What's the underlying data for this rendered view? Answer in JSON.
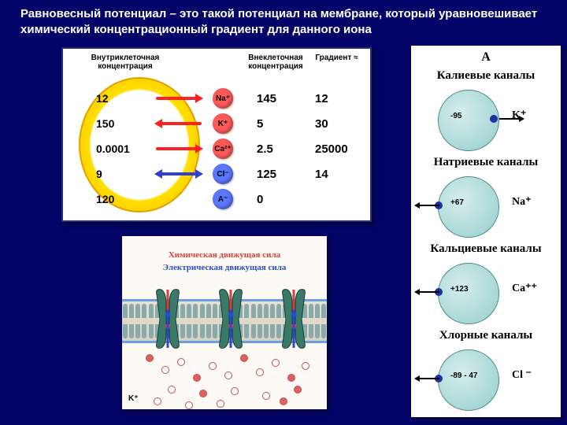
{
  "title": "Равновесный потенциал – это такой потенциал на мембране, который уравновешивает химический концентрационный градиент для данного иона",
  "panelA": {
    "headers": {
      "intra": "Внутриклеточная концентрация",
      "extra": "Внеклеточная концентрация",
      "grad": "Градиент ≈"
    },
    "rows": [
      {
        "intra": "12",
        "ion": "Na⁺",
        "ion_bg": "#ff5a5a",
        "arrow_color": "#ff2020",
        "arrow_dir": "right",
        "extra": "145",
        "grad": "12"
      },
      {
        "intra": "150",
        "ion": "K⁺",
        "ion_bg": "#ff5a5a",
        "arrow_color": "#ff2020",
        "arrow_dir": "left",
        "extra": "5",
        "grad": "30"
      },
      {
        "intra": "0.0001",
        "ion": "Ca²⁺",
        "ion_bg": "#ff5a5a",
        "arrow_color": "#ff2020",
        "arrow_dir": "right",
        "extra": "2.5",
        "grad": "25000"
      },
      {
        "intra": "9",
        "ion": "Cl⁻",
        "ion_bg": "#5a78ff",
        "arrow_color": "#3040d0",
        "arrow_dir": "both",
        "extra": "125",
        "grad": "14"
      },
      {
        "intra": "120",
        "ion": "A⁻",
        "ion_bg": "#5a78ff",
        "arrow_color": null,
        "arrow_dir": null,
        "extra": "0",
        "grad": ""
      }
    ],
    "row_top_start": 48,
    "row_step": 32
  },
  "panelB": {
    "chem_label": "Химическая движущая сила",
    "chem_color": "#d84040",
    "elec_label": "Электрическая движущая сила",
    "elec_color": "#2a4bd0",
    "k_label": "K⁺",
    "channel_color": "#3a7a6a",
    "arrow_chem": "#d84040",
    "arrow_elec": "#2a4bd0"
  },
  "panelC": {
    "hdr": "А",
    "rows": [
      {
        "title": "Калиевые каналы",
        "pot": "-95",
        "ion": "K⁺",
        "dir": "out"
      },
      {
        "title": "Натриевые каналы",
        "pot": "+67",
        "ion": "Na⁺",
        "dir": "in"
      },
      {
        "title": "Кальциевые каналы",
        "pot": "+123",
        "ion": "Ca⁺⁺",
        "dir": "in"
      },
      {
        "title": "Хлорные каналы",
        "pot": "-89 - 47",
        "ion": "Cl ⁻",
        "dir": "in"
      }
    ],
    "row_top_start": 28,
    "row_step": 110
  }
}
